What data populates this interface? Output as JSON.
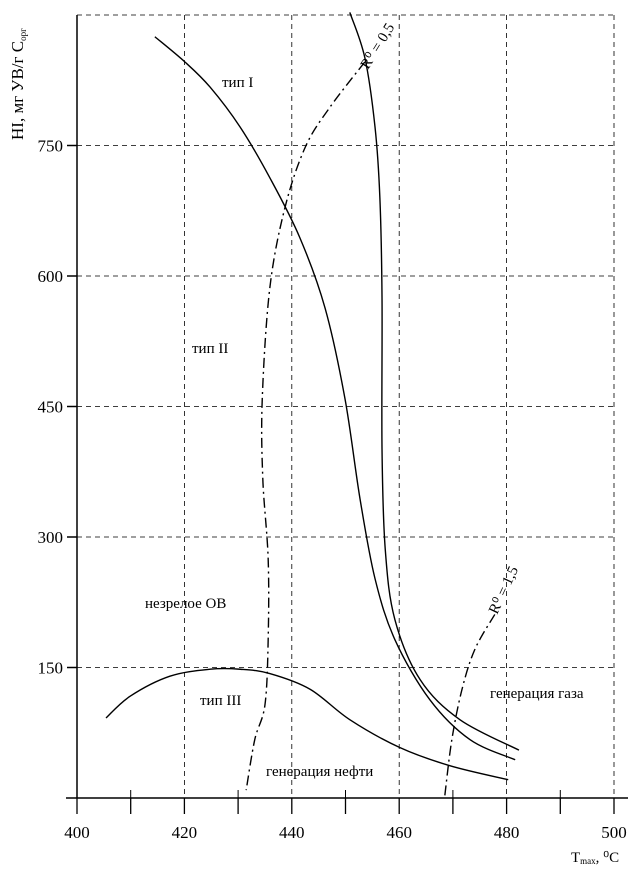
{
  "chart_data": {
    "type": "line",
    "xlabel_main": "T",
    "xlabel_sub": "max",
    "xlabel_unit": ", ⁰C",
    "ylabel_main": "HI, мг УВ/г C",
    "ylabel_sub": "орг",
    "xlim": [
      400,
      500
    ],
    "ylim": [
      0,
      900
    ],
    "xticks": [
      "400",
      "420",
      "440",
      "460",
      "480",
      "500"
    ],
    "yticks": [
      "150",
      "300",
      "450",
      "600",
      "750"
    ],
    "grid": true,
    "series": [
      {
        "name": "тип I",
        "style": "solid",
        "x": [
          450.8,
          453.6,
          455.5,
          456.4,
          456.8,
          456.8,
          457.4,
          459.2,
          463.9,
          471.3,
          482.3
        ],
        "y": [
          903,
          851,
          771,
          690,
          575,
          401,
          286,
          205,
          136,
          90,
          55
        ]
      },
      {
        "name": "тип II",
        "style": "solid",
        "x": [
          414.5,
          420.1,
          424.8,
          430.4,
          435.9,
          441.5,
          446.2,
          449.9,
          452.7,
          455.5,
          459.2,
          465.7,
          473.2,
          481.6
        ],
        "y": [
          875,
          846,
          817,
          771,
          713,
          644,
          563,
          459,
          344,
          252,
          182,
          113,
          67,
          44
        ]
      },
      {
        "name": "тип III",
        "style": "solid",
        "x": [
          405.4,
          409.9,
          417.3,
          424.8,
          430.4,
          435.9,
          443.4,
          450.8,
          460.1,
          469.5,
          480.3
        ],
        "y": [
          92,
          117,
          140,
          148,
          148,
          143,
          125,
          90,
          58,
          37,
          21
        ]
      },
      {
        "name": "R⁰ = 0,5",
        "style": "dashdot",
        "x": [
          453.6,
          447.1,
          442.5,
          438.7,
          435.9,
          434.5,
          434.6,
          435.6,
          435.6,
          435.0,
          433.1,
          431.5
        ],
        "y": [
          846,
          794,
          748,
          678,
          586,
          459,
          367,
          275,
          182,
          107,
          67,
          9
        ]
      },
      {
        "name": "R⁰ = 1,5",
        "style": "dashdot",
        "x": [
          468.5,
          469.8,
          471.7,
          474.1,
          477.8
        ],
        "y": [
          3,
          67,
          125,
          171,
          211
        ]
      }
    ],
    "annotations": {
      "type1": "тип I",
      "type2": "тип II",
      "type3": "тип III",
      "immature": "незрелое ОВ",
      "oil": "генерация нефти",
      "gas": "генерация газа",
      "r05": "R⁰ = 0,5",
      "r15": "R⁰ = 1,5"
    }
  }
}
